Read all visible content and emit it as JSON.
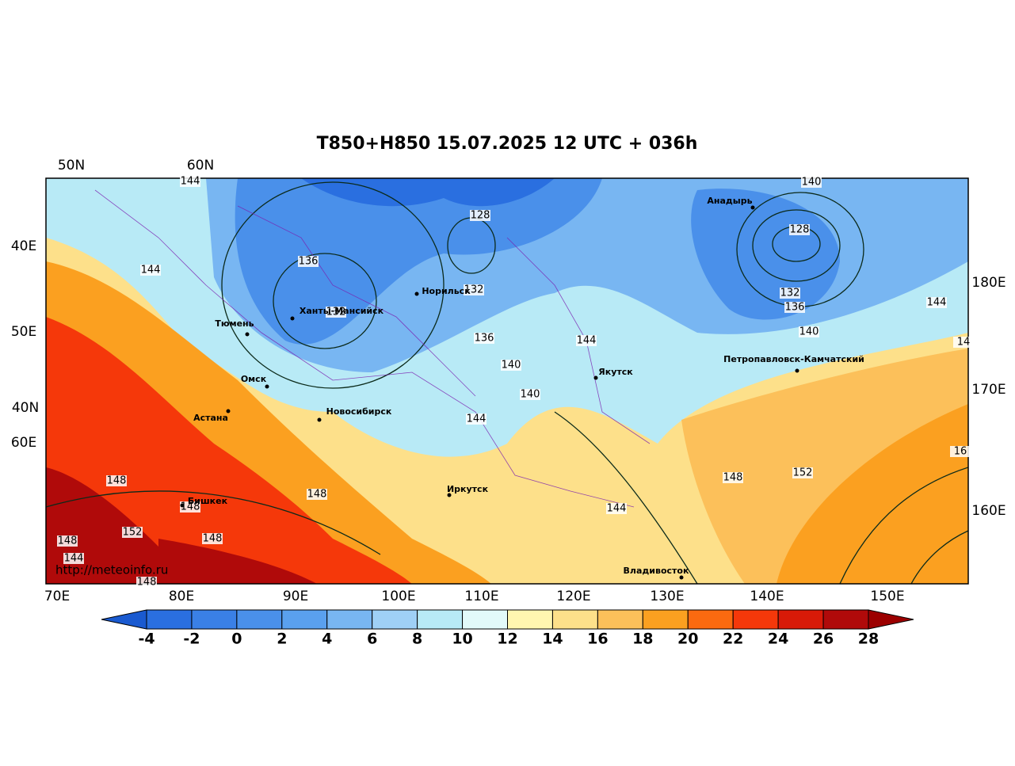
{
  "title": "T850+H850 15.07.2025 12 UTC + 036h",
  "top_labels": [
    "50N",
    "60N"
  ],
  "left_labels": [
    "40E",
    "50E",
    "40N",
    "60E"
  ],
  "right_labels": [
    "180E",
    "170E",
    "160E"
  ],
  "bottom_labels": [
    "70E",
    "80E",
    "90E",
    "100E",
    "110E",
    "120E",
    "130E",
    "140E",
    "150E"
  ],
  "cities": [
    "Анадырь",
    "Норильск",
    "Ханты-Мансийск",
    "Тюмень",
    "Омск",
    "Астана",
    "Новосибирск",
    "Якутск",
    "Петропавловск-Камчатский",
    "Бишкек",
    "Иркутск",
    "Владивосток"
  ],
  "contour_labels": [
    144,
    128,
    128,
    140,
    136,
    144,
    132,
    132,
    132,
    136,
    144,
    140,
    136,
    144,
    14,
    140,
    140,
    144,
    16,
    152,
    148,
    148,
    148,
    144,
    148,
    152,
    148,
    148,
    144,
    148
  ],
  "source": "http://meteoinfo.ru",
  "colorbar": {
    "levels": [
      -4,
      -2,
      0,
      2,
      4,
      6,
      8,
      10,
      12,
      14,
      16,
      18,
      20,
      22,
      24,
      26,
      28
    ],
    "colors": [
      "#1a5ad0",
      "#2a6fe0",
      "#3a80e6",
      "#4a90ea",
      "#5aa0ee",
      "#78b6f2",
      "#9fd0f6",
      "#b8eaf6",
      "#e2f9f9",
      "#fff6b0",
      "#fde08a",
      "#fcc05a",
      "#fba020",
      "#fb6a10",
      "#f5380a",
      "#d81a08",
      "#b00a0a",
      "#9c0000"
    ]
  }
}
